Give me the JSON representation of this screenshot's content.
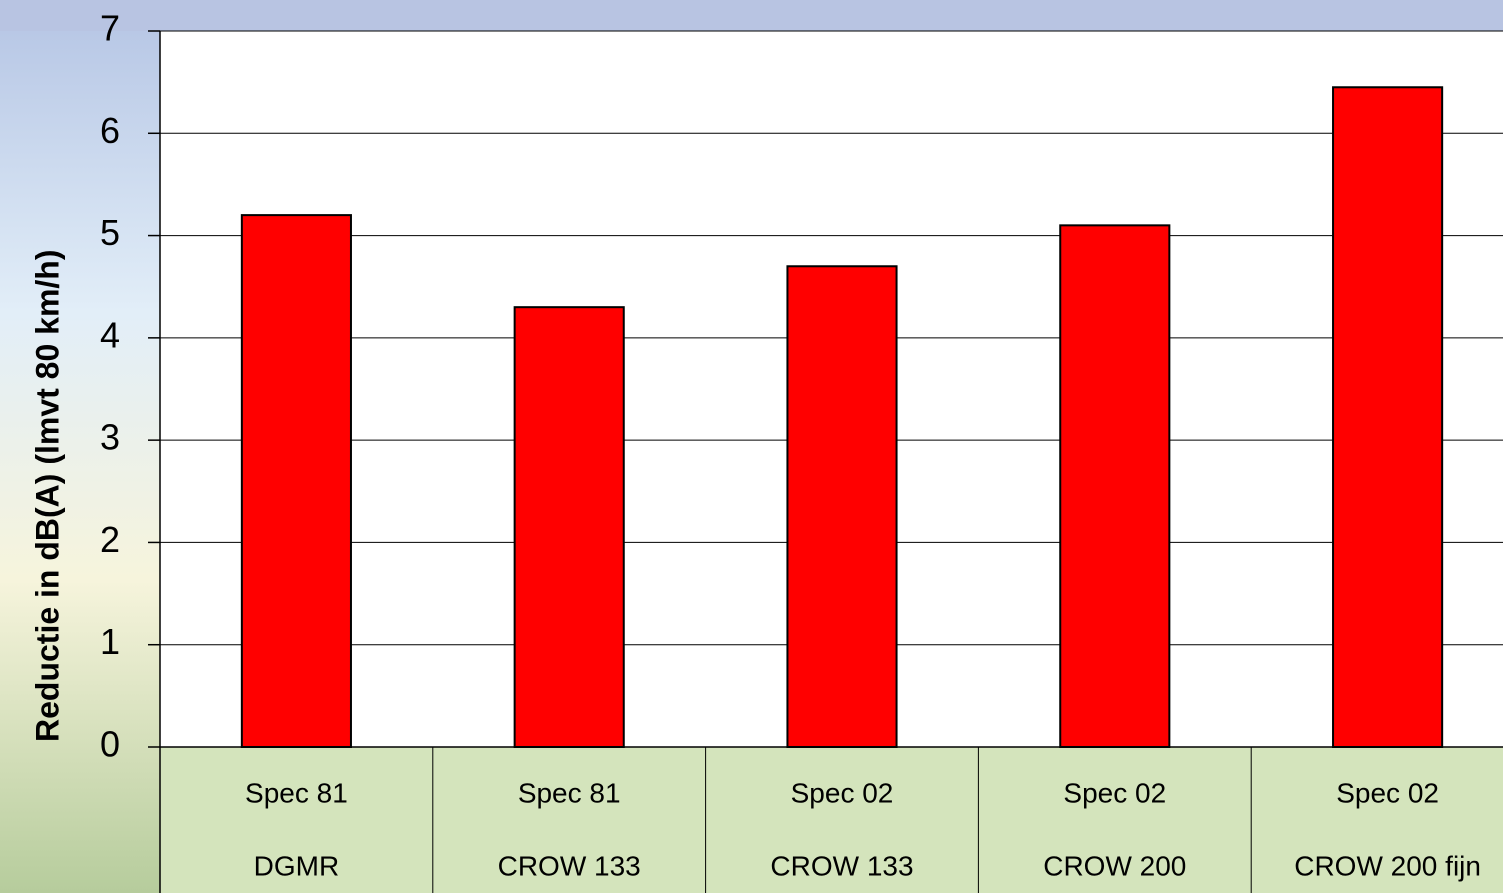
{
  "chart_data": {
    "type": "bar",
    "ylabel": "Reductie in dB(A) (lmvt 80 km/h)",
    "categories": [
      [
        "Spec 81",
        "DGMR"
      ],
      [
        "Spec 81",
        "CROW 133"
      ],
      [
        "Spec 02",
        "CROW 133"
      ],
      [
        "Spec 02",
        "CROW 200"
      ],
      [
        "Spec 02",
        "CROW 200 fijn"
      ]
    ],
    "values": [
      5.2,
      4.3,
      4.7,
      5.1,
      6.45
    ],
    "color": "#ff0000",
    "ylim": [
      0,
      7
    ],
    "yticks": [
      0,
      1,
      2,
      3,
      4,
      5,
      6,
      7
    ],
    "grid": true
  }
}
